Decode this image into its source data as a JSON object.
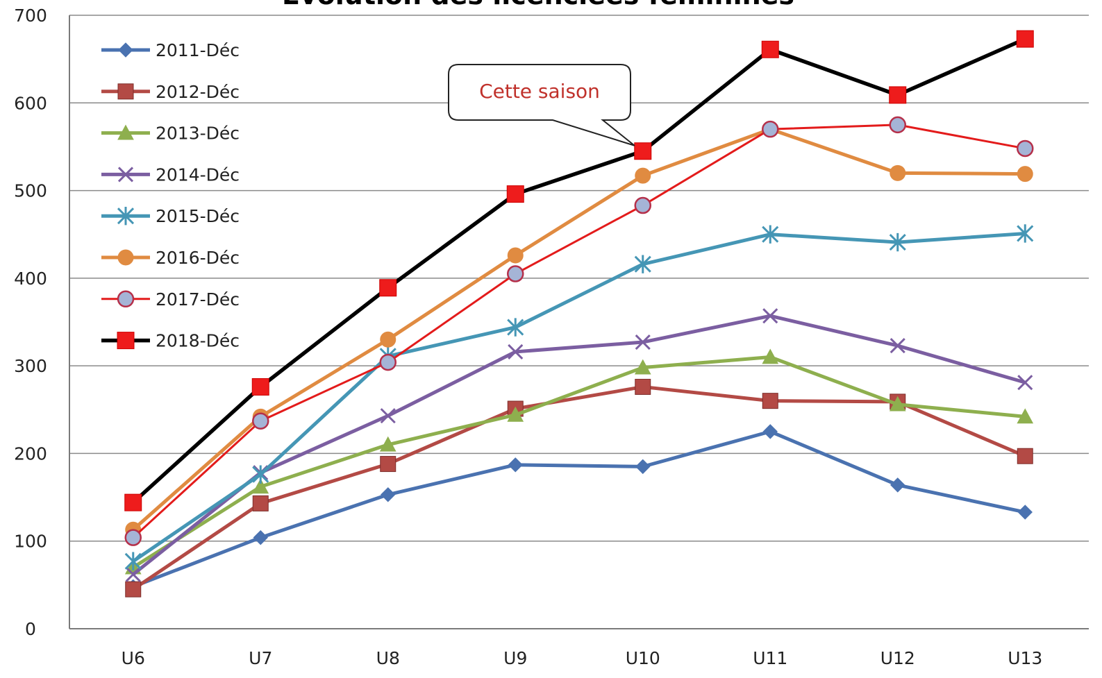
{
  "chart_data": {
    "type": "line",
    "title": "Évolution des licenciées féminines",
    "xlabel": "",
    "ylabel": "",
    "categories": [
      "U6",
      "U7",
      "U8",
      "U9",
      "U10",
      "U11",
      "U12",
      "U13"
    ],
    "ylim": [
      0,
      700
    ],
    "yticks": [
      0,
      100,
      200,
      300,
      400,
      500,
      600,
      700
    ],
    "grid": "horizontal",
    "legend_position": "top-left",
    "annotation": {
      "text": "Cette saison",
      "target_series": "2018-Déc",
      "target_category": "U10",
      "color": "#c0312b"
    },
    "series": [
      {
        "name": "2011-Déc",
        "color": "#4a72b0",
        "marker": "diamond",
        "values": [
          48,
          104,
          153,
          187,
          185,
          225,
          164,
          133
        ]
      },
      {
        "name": "2012-Déc",
        "color": "#b34a45",
        "marker": "square",
        "values": [
          45,
          143,
          188,
          251,
          276,
          260,
          259,
          197
        ]
      },
      {
        "name": "2013-Déc",
        "color": "#8eaf4e",
        "marker": "triangle",
        "values": [
          70,
          162,
          210,
          244,
          298,
          310,
          256,
          242
        ]
      },
      {
        "name": "2014-Déc",
        "color": "#7b5ea1",
        "marker": "x",
        "values": [
          62,
          178,
          243,
          316,
          327,
          357,
          323,
          281
        ]
      },
      {
        "name": "2015-Déc",
        "color": "#4596b5",
        "marker": "star",
        "values": [
          77,
          176,
          311,
          344,
          416,
          450,
          441,
          451
        ]
      },
      {
        "name": "2016-Déc",
        "color": "#e08b41",
        "marker": "circle",
        "values": [
          113,
          242,
          330,
          426,
          517,
          570,
          520,
          519
        ]
      },
      {
        "name": "2017-Déc",
        "color": "#e31b1b",
        "marker": "circle-hollow",
        "values": [
          104,
          237,
          304,
          405,
          483,
          570,
          575,
          548
        ]
      },
      {
        "name": "2018-Déc",
        "color": "#000000",
        "marker": "square-red",
        "values": [
          144,
          276,
          389,
          496,
          545,
          661,
          609,
          673
        ]
      }
    ]
  }
}
